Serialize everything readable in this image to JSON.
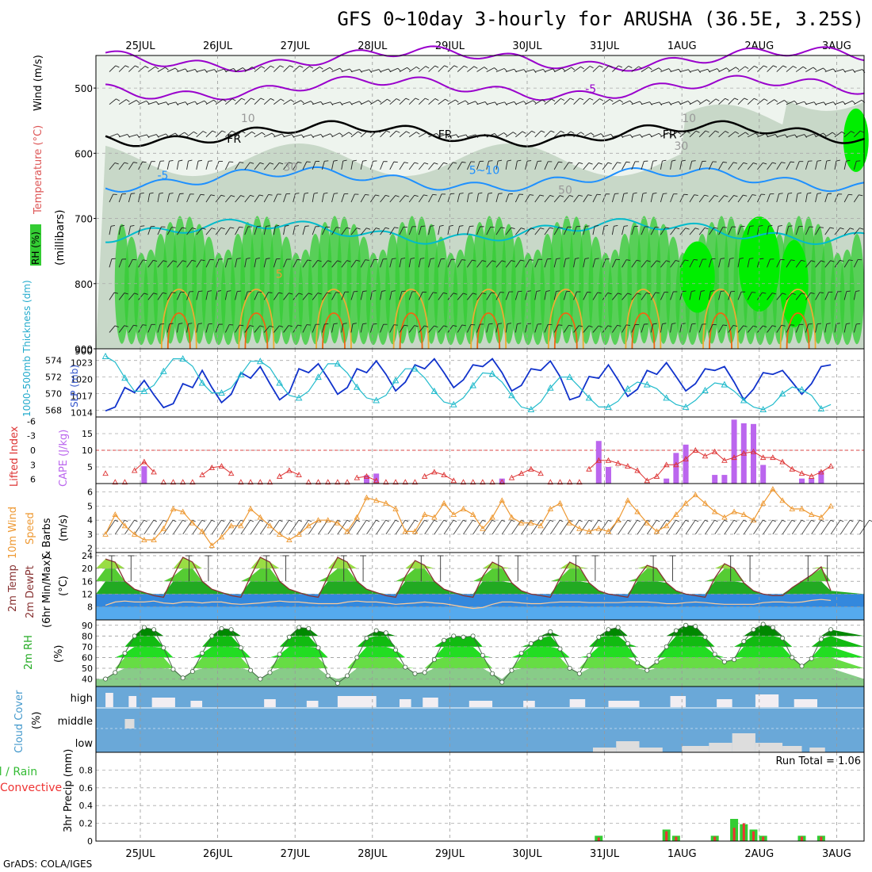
{
  "title": "GFS 0~10day 3-hourly for ARUSHA (36.5E, 3.25S)",
  "footer": "GrADS: COLA/IGES",
  "dates": [
    "25JUL",
    "26JUL",
    "27JUL",
    "28JUL",
    "29JUL",
    "30JUL",
    "31JUL",
    "1AUG",
    "2AUG",
    "3AUG"
  ],
  "colors": {
    "rh_green": "#33cc33",
    "rh_gray": "#c8d8c8",
    "temp_purple": "#9900cc",
    "temp_blue": "#1e90ff",
    "temp_cyan": "#00bbcc",
    "temp_orange": "#ee8822",
    "slp_blue": "#1133cc",
    "thick_cyan": "#22bbcc",
    "cape_purple": "#bb66ee",
    "li_red": "#dd3333",
    "wind_orange": "#ee9933",
    "cloud_blue": "#6aa8d8",
    "precip_green": "#33cc33",
    "precip_red": "#ee3333"
  },
  "chart_data": [
    {
      "type": "heatmap",
      "panel": "upper-air",
      "ylabel": "(millibars)",
      "legend_labels": [
        "Wind (m/s)",
        "Temperature (°C)",
        "RH (%)"
      ],
      "y_ticks": [
        500,
        600,
        700,
        800,
        900
      ],
      "ylim": [
        900,
        450
      ],
      "contour_labels": [
        "-5",
        "FR",
        "FR",
        "FR",
        "-5",
        "5~10",
        "10",
        "10",
        "30",
        "30",
        "50",
        "5"
      ],
      "isotherms": [
        {
          "name": "-10",
          "color": "#9900cc",
          "level_mb": 455
        },
        {
          "name": "-5",
          "color": "#9900cc",
          "level_mb": 500
        },
        {
          "name": "FR",
          "color": "#000000",
          "level_mb": 570
        },
        {
          "name": "5",
          "color": "#1e90ff",
          "level_mb": 640
        },
        {
          "name": "10",
          "color": "#00bbcc",
          "level_mb": 720
        }
      ]
    },
    {
      "type": "line",
      "panel": "slp-thickness",
      "ylabel_left": "1000-500mb Thickness (dm)",
      "ylabel_right": "SLP (mb)",
      "y_ticks_left": [
        568,
        570,
        572,
        574
      ],
      "y_ticks_right": [
        1014,
        1017,
        1020,
        1023
      ],
      "ylim_left": [
        567.2,
        575.4
      ],
      "ylim_right": [
        1013.2,
        1025.5
      ],
      "x": [
        0,
        0.125,
        0.25,
        0.375,
        0.5,
        0.625,
        0.75,
        0.875,
        1,
        1.125,
        1.25,
        1.375,
        1.5,
        1.625,
        1.75,
        1.875,
        2,
        2.125,
        2.25,
        2.375,
        2.5,
        2.625,
        2.75,
        2.875,
        3,
        3.125,
        3.25,
        3.375,
        3.5,
        3.625,
        3.75,
        3.875,
        4,
        4.125,
        4.25,
        4.375,
        4.5,
        4.625,
        4.75,
        4.875,
        5,
        5.125,
        5.25,
        5.375,
        5.5,
        5.625,
        5.75,
        5.875,
        6,
        6.125,
        6.25,
        6.375,
        6.5,
        6.625,
        6.75,
        6.875,
        7,
        7.125,
        7.25,
        7.375,
        7.5,
        7.625,
        7.75,
        7.875,
        8,
        8.125,
        8.25,
        8.375,
        8.5,
        8.625,
        8.75,
        8.875,
        9,
        9.125,
        9.25,
        9.375
      ],
      "series": [
        {
          "name": "SLP (mb)",
          "axis": "right",
          "values": [
            1014.3,
            1015,
            1018.5,
            1017.6,
            1019.8,
            1017.2,
            1014.9,
            1015.6,
            1019.2,
            1018.5,
            1021.6,
            1018.5,
            1015.8,
            1017.3,
            1021.2,
            1020.2,
            1022.3,
            1019.2,
            1016.3,
            1017.6,
            1021.9,
            1021.2,
            1022.8,
            1020.2,
            1017.3,
            1018.5,
            1021.9,
            1021.2,
            1023.3,
            1020.9,
            1017.9,
            1019.5,
            1022.6,
            1021.9,
            1023.7,
            1021.2,
            1018.5,
            1019.9,
            1022.6,
            1022.3,
            1023.7,
            1021.2,
            1017.9,
            1018.9,
            1021.9,
            1021.6,
            1023.3,
            1020.5,
            1016.3,
            1016.9,
            1020.5,
            1020.2,
            1022.6,
            1019.9,
            1016.9,
            1018.2,
            1021.6,
            1020.9,
            1023,
            1020.5,
            1017.9,
            1019.2,
            1021.9,
            1021.6,
            1022.3,
            1019.5,
            1016.3,
            1018.2,
            1021.2,
            1020.9,
            1021.6,
            1019.5,
            1017.3,
            1019.2,
            1022.3,
            1022.6
          ]
        },
        {
          "name": "1000-500mb Thickness (dm)",
          "axis": "left",
          "values": [
            574.5,
            573.8,
            571.9,
            570.3,
            570.3,
            571,
            572.7,
            574.2,
            574.2,
            573.3,
            571.3,
            570.1,
            570.1,
            570.7,
            572.3,
            573.9,
            573.9,
            573.1,
            571.3,
            569.8,
            569.5,
            570.3,
            572,
            573.6,
            573.6,
            572.5,
            570.8,
            569.5,
            569.2,
            569.8,
            571.6,
            573,
            573,
            571.9,
            570.3,
            569,
            568.7,
            569.5,
            571,
            572.5,
            572.4,
            571.4,
            569.8,
            568.4,
            568.1,
            569,
            570.7,
            572,
            572,
            570.8,
            569.5,
            568.4,
            568.4,
            569.1,
            570.6,
            571.4,
            571.1,
            570.6,
            569.5,
            568.7,
            568.4,
            569.2,
            570.4,
            571.3,
            571.1,
            570.3,
            569.2,
            568.4,
            568.1,
            568.7,
            570,
            570.8,
            570.5,
            569.8,
            568.2,
            568.7
          ]
        }
      ]
    },
    {
      "type": "bar",
      "panel": "cape-li",
      "ylabel_left": "Lifted Index",
      "ylabel_right": "CAPE (J/kg)",
      "y_ticks_left": [
        -6,
        -3,
        0,
        3,
        6
      ],
      "y_ticks_right": [
        5,
        10,
        15
      ],
      "ylim_right": [
        0,
        20
      ],
      "cape_x": [
        0.5,
        3.375,
        3.5,
        5.125,
        6.375,
        6.5,
        7.25,
        7.375,
        7.5,
        7.875,
        8,
        8.125,
        8.25,
        8.375,
        8.5,
        9,
        9.125,
        9.25
      ],
      "cape_values": [
        5.2,
        2.5,
        3,
        1.5,
        12.8,
        5,
        1.5,
        9.2,
        11.7,
        2.6,
        2.6,
        19.2,
        18.1,
        17.9,
        5.6,
        1.5,
        1.5,
        3.8
      ],
      "li_x": [
        0,
        0.125,
        0.25,
        0.375,
        0.5,
        0.625,
        0.75,
        0.875,
        1,
        1.125,
        1.25,
        1.375,
        1.5,
        1.625,
        1.75,
        1.875,
        2,
        2.125,
        2.25,
        2.375,
        2.5,
        2.625,
        2.75,
        2.875,
        3,
        3.125,
        3.25,
        3.375,
        3.5,
        3.625,
        3.75,
        3.875,
        4,
        4.125,
        4.25,
        4.375,
        4.5,
        4.625,
        4.75,
        4.875,
        5,
        5.125,
        5.25,
        5.375,
        5.5,
        5.625,
        5.75,
        5.875,
        6,
        6.125,
        6.25,
        6.375,
        6.5,
        6.625,
        6.75,
        6.875,
        7,
        7.125,
        7.25,
        7.375,
        7.5,
        7.625,
        7.75,
        7.875,
        8,
        8.125,
        8.25,
        8.375,
        8.5,
        8.625,
        8.75,
        8.875,
        9,
        9.125,
        9.25,
        9.375
      ],
      "li_values": [
        4.8,
        6.6,
        6.6,
        4.2,
        2.4,
        4.5,
        6.6,
        6.6,
        6.6,
        6.6,
        5.1,
        3.6,
        3.3,
        4.8,
        6.6,
        6.6,
        6.6,
        6.6,
        5.4,
        4.2,
        5.1,
        6.6,
        6.6,
        6.6,
        6.6,
        6.6,
        5.7,
        5.4,
        6.3,
        6.6,
        6.6,
        6.6,
        6.6,
        5.4,
        4.5,
        5.1,
        6.3,
        6.6,
        6.6,
        6.6,
        6.6,
        6.6,
        5.7,
        4.8,
        3.9,
        4.8,
        6.6,
        6.6,
        6.6,
        6.6,
        3.9,
        2.1,
        2.1,
        2.7,
        3.3,
        4.2,
        6.3,
        5.4,
        3,
        3,
        1.8,
        0,
        1.2,
        0.3,
        2.1,
        1.5,
        0.6,
        0.3,
        1.5,
        1.5,
        2.4,
        3.9,
        4.8,
        5.4,
        4.5,
        3.3
      ]
    },
    {
      "type": "line",
      "panel": "wind",
      "ylabel": "10m Wind Speed (m/s) & Barbs",
      "y_ticks": [
        2,
        3,
        4,
        5,
        6
      ],
      "ylim": [
        1.7,
        6.6
      ],
      "x": [
        0,
        0.125,
        0.25,
        0.375,
        0.5,
        0.625,
        0.75,
        0.875,
        1,
        1.125,
        1.25,
        1.375,
        1.5,
        1.625,
        1.75,
        1.875,
        2,
        2.125,
        2.25,
        2.375,
        2.5,
        2.625,
        2.75,
        2.875,
        3,
        3.125,
        3.25,
        3.375,
        3.5,
        3.625,
        3.75,
        3.875,
        4,
        4.125,
        4.25,
        4.375,
        4.5,
        4.625,
        4.75,
        4.875,
        5,
        5.125,
        5.25,
        5.375,
        5.5,
        5.625,
        5.75,
        5.875,
        6,
        6.125,
        6.25,
        6.375,
        6.5,
        6.625,
        6.75,
        6.875,
        7,
        7.125,
        7.25,
        7.375,
        7.5,
        7.625,
        7.75,
        7.875,
        8,
        8.125,
        8.25,
        8.375,
        8.5,
        8.625,
        8.75,
        8.875,
        9,
        9.125,
        9.25,
        9.375
      ],
      "values": [
        3,
        4.4,
        3.6,
        3,
        2.6,
        2.6,
        3.4,
        4.8,
        4.6,
        3.8,
        3.2,
        2.2,
        2.8,
        3.6,
        3.6,
        4.8,
        4.2,
        3.6,
        3,
        2.6,
        3,
        3.6,
        4,
        4,
        3.8,
        3.2,
        4.2,
        5.6,
        5.4,
        5.2,
        4.8,
        3.2,
        3.2,
        4.4,
        4.2,
        5.2,
        4.4,
        4.8,
        4.4,
        3.4,
        4.2,
        5.4,
        4.2,
        3.8,
        3.8,
        3.6,
        4.8,
        5.2,
        3.8,
        3.4,
        3.2,
        3.4,
        3.2,
        4,
        5.4,
        4.6,
        3.8,
        3.2,
        3.6,
        4.4,
        5.2,
        5.8,
        5.2,
        4.6,
        4.2,
        4.6,
        4.4,
        4,
        5.2,
        6.2,
        5.4,
        4.8,
        4.8,
        4.4,
        4.2,
        5
      ]
    },
    {
      "type": "area",
      "panel": "temperature",
      "ylabel": "2m Temp 2m DewPt (6hr Min/Max) (°C)",
      "y_ticks": [
        8,
        12,
        16,
        20,
        24
      ],
      "ylim": [
        3.9,
        25
      ],
      "x": [
        0,
        0.125,
        0.25,
        0.375,
        0.5,
        0.625,
        0.75,
        0.875,
        1,
        1.125,
        1.25,
        1.375,
        1.5,
        1.625,
        1.75,
        1.875,
        2,
        2.125,
        2.25,
        2.375,
        2.5,
        2.625,
        2.75,
        2.875,
        3,
        3.125,
        3.25,
        3.375,
        3.5,
        3.625,
        3.75,
        3.875,
        4,
        4.125,
        4.25,
        4.375,
        4.5,
        4.625,
        4.75,
        4.875,
        5,
        5.125,
        5.25,
        5.375,
        5.5,
        5.625,
        5.75,
        5.875,
        6,
        6.125,
        6.25,
        6.375,
        6.5,
        6.625,
        6.75,
        6.875,
        7,
        7.125,
        7.25,
        7.375,
        7.5,
        7.625,
        7.75,
        7.875,
        8,
        8.125,
        8.25,
        8.375,
        8.5,
        8.625,
        8.75,
        8.875,
        9,
        9.125,
        9.25,
        9.375
      ],
      "series": [
        {
          "name": "2m Temp",
          "values": [
            23,
            22,
            16,
            13.5,
            12.5,
            11.5,
            11,
            17.5,
            23.5,
            22,
            16,
            13.5,
            12.5,
            11.5,
            11,
            17.5,
            23.5,
            22,
            16,
            13.5,
            12.5,
            11.5,
            11,
            17.5,
            23.5,
            22,
            16,
            13.5,
            12.5,
            11.5,
            11,
            17.5,
            22.5,
            21,
            16,
            13.5,
            12.5,
            11.5,
            11,
            17.5,
            22,
            20.5,
            15.5,
            13,
            12,
            11.5,
            11,
            17,
            22,
            20.5,
            15.5,
            13,
            12,
            11.5,
            11,
            17,
            21,
            20,
            15.5,
            13,
            12,
            11.5,
            11,
            17,
            21.5,
            20,
            15.5,
            13,
            12,
            11.5,
            11.5,
            14,
            16,
            18,
            20.5,
            13
          ]
        },
        {
          "name": "2m DewPt",
          "values": [
            8.5,
            9.5,
            9.8,
            9.5,
            9.5,
            9.8,
            9.2,
            9,
            9.5,
            9.5,
            9.2,
            9.5,
            9.5,
            9,
            8.8,
            9,
            9.2,
            9.5,
            9.8,
            9.5,
            9.5,
            9.2,
            9,
            9,
            9,
            9.5,
            9.8,
            9.5,
            9.5,
            9.2,
            8.8,
            9,
            9.2,
            9.5,
            9.2,
            9,
            8.5,
            8,
            7.5,
            7.8,
            8.8,
            9.5,
            9.5,
            9.2,
            9,
            9,
            9.3,
            9.5,
            9.5,
            9.5,
            9.3,
            9.3,
            9.3,
            9.3,
            9.5,
            9.5,
            9.5,
            9.3,
            9,
            9,
            9.3,
            9.5,
            9.3,
            9,
            8.8,
            8.8,
            8.8,
            8.8,
            9.3,
            9.5,
            9.5,
            9.3,
            9.5,
            10,
            10.3,
            10
          ]
        }
      ]
    },
    {
      "type": "area",
      "panel": "rh",
      "ylabel": "2m RH (%)",
      "y_ticks": [
        40,
        50,
        60,
        70,
        80,
        90
      ],
      "ylim": [
        33,
        95
      ],
      "x": [
        0,
        0.125,
        0.25,
        0.375,
        0.5,
        0.625,
        0.75,
        0.875,
        1,
        1.125,
        1.25,
        1.375,
        1.5,
        1.625,
        1.75,
        1.875,
        2,
        2.125,
        2.25,
        2.375,
        2.5,
        2.625,
        2.75,
        2.875,
        3,
        3.125,
        3.25,
        3.375,
        3.5,
        3.625,
        3.75,
        3.875,
        4,
        4.125,
        4.25,
        4.375,
        4.5,
        4.625,
        4.75,
        4.875,
        5,
        5.125,
        5.25,
        5.375,
        5.5,
        5.625,
        5.75,
        5.875,
        6,
        6.125,
        6.25,
        6.375,
        6.5,
        6.625,
        6.75,
        6.875,
        7,
        7.125,
        7.25,
        7.375,
        7.5,
        7.625,
        7.75,
        7.875,
        8,
        8.125,
        8.25,
        8.375,
        8.5,
        8.625,
        8.75,
        8.875,
        9,
        9.125,
        9.25,
        9.375
      ],
      "values": [
        40,
        46,
        64,
        80,
        88,
        86,
        69,
        49,
        41,
        47,
        64,
        80,
        87,
        86,
        69,
        48,
        40,
        46,
        63,
        79,
        88,
        87,
        69,
        43,
        36,
        43,
        60,
        78,
        85,
        83,
        67,
        51,
        45,
        46,
        58,
        76,
        80,
        79,
        80,
        62,
        45,
        37,
        48,
        64,
        73,
        78,
        84,
        68,
        50,
        45,
        62,
        79,
        86,
        88,
        73,
        55,
        48,
        56,
        70,
        85,
        90,
        89,
        79,
        63,
        56,
        58,
        75,
        86,
        91,
        88,
        78,
        60,
        52,
        59,
        77,
        86
      ]
    },
    {
      "type": "bar",
      "panel": "cloud-cover",
      "ylabel": "Cloud Cover (%)",
      "row_labels": [
        "high",
        "middle",
        "low"
      ]
    },
    {
      "type": "bar",
      "panel": "precip",
      "ylabel": "3hr Precip (mm)",
      "legend_labels": [
        "Total / Rain",
        "Convective"
      ],
      "annotation": "Run Total = 1.06",
      "y_ticks": [
        0,
        0.2,
        0.4,
        0.6,
        0.8
      ],
      "ylim": [
        0,
        1
      ],
      "x": [
        6.375,
        7.25,
        7.375,
        7.875,
        8.125,
        8.25,
        8.375,
        8.5,
        9,
        9.25
      ],
      "total": [
        0.06,
        0.13,
        0.06,
        0.06,
        0.25,
        0.19,
        0.13,
        0.06,
        0.06,
        0.06
      ],
      "convective": [
        0.04,
        0.11,
        0.05,
        0.05,
        0.15,
        0.2,
        0.11,
        0.05,
        0.05,
        0.05
      ]
    }
  ]
}
